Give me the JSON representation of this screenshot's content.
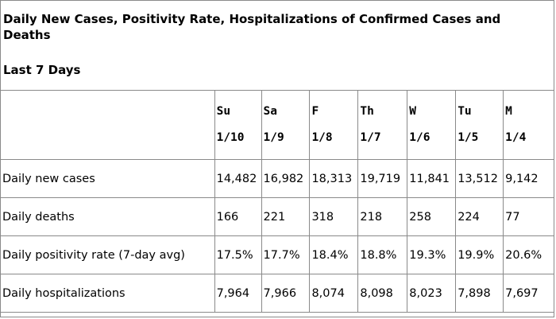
{
  "title": "Daily New Cases, Positivity Rate, Hospitalizations of Confirmed Cases and Deaths",
  "subtitle": "Last 7 Days",
  "columns": [
    {
      "day": "Su",
      "date": "1/10"
    },
    {
      "day": "Sa",
      "date": "1/9"
    },
    {
      "day": "F",
      "date": "1/8"
    },
    {
      "day": "Th",
      "date": "1/7"
    },
    {
      "day": "W",
      "date": "1/6"
    },
    {
      "day": "Tu",
      "date": "1/5"
    },
    {
      "day": "M",
      "date": "1/4"
    }
  ],
  "rows": [
    {
      "label": "Daily new cases",
      "values": [
        "14,482",
        "16,982",
        "18,313",
        "19,719",
        "11,841",
        "13,512",
        "9,142"
      ]
    },
    {
      "label": "Daily deaths",
      "values": [
        "166",
        "221",
        "318",
        "218",
        "258",
        "224",
        "77"
      ]
    },
    {
      "label": "Daily positivity rate (7-day avg)",
      "values": [
        "17.5%",
        "17.7%",
        "18.4%",
        "18.8%",
        "19.3%",
        "19.9%",
        "20.6%"
      ]
    },
    {
      "label": "Daily hospitalizations",
      "values": [
        "7,964",
        "7,966",
        "8,074",
        "8,098",
        "8,023",
        "7,898",
        "7,697"
      ]
    }
  ],
  "chart_data": {
    "type": "table",
    "title": "Daily New Cases, Positivity Rate, Hospitalizations of Confirmed Cases and Deaths",
    "subtitle": "Last 7 Days",
    "categories": [
      "Su 1/10",
      "Sa 1/9",
      "F 1/8",
      "Th 1/7",
      "W 1/6",
      "Tu 1/5",
      "M 1/4"
    ],
    "series": [
      {
        "name": "Daily new cases",
        "values": [
          14482,
          16982,
          18313,
          19719,
          11841,
          13512,
          9142
        ]
      },
      {
        "name": "Daily deaths",
        "values": [
          166,
          221,
          318,
          218,
          258,
          224,
          77
        ]
      },
      {
        "name": "Daily positivity rate (7-day avg)",
        "values": [
          17.5,
          17.7,
          18.4,
          18.8,
          19.3,
          19.9,
          20.6
        ]
      },
      {
        "name": "Daily hospitalizations",
        "values": [
          7964,
          7966,
          8074,
          8098,
          8023,
          7898,
          7697
        ]
      }
    ]
  }
}
